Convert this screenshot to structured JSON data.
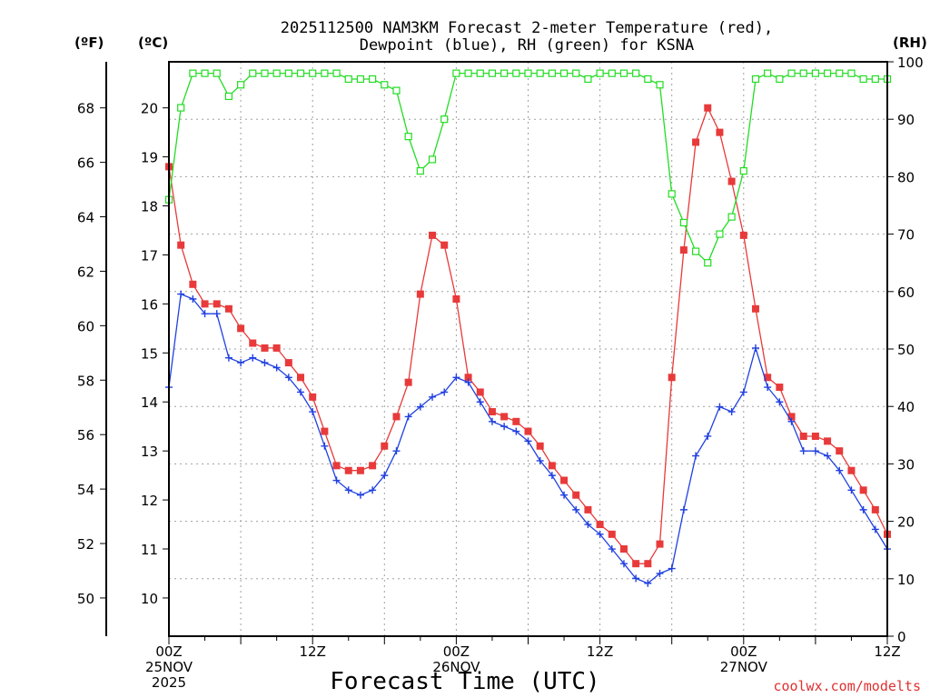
{
  "title_line1": "2025112500 NAM3KM Forecast 2-meter Temperature (red),",
  "title_line2": "Dewpoint (blue), RH (green) for KSNA",
  "units": {
    "f": "(ºF)",
    "c": "(ºC)",
    "rh": "(RH)"
  },
  "xlabel": "Forecast Time (UTC)",
  "credit": "coolwx.com/modelts",
  "colors": {
    "temp": "#e83a3a",
    "dew": "#2040e0",
    "rh": "#22dd22"
  },
  "chart_data": {
    "type": "line",
    "title": "2025112500 NAM3KM Forecast 2-meter Temperature (red), Dewpoint (blue), RH (green) for KSNA",
    "xlabel": "Forecast Time (UTC)",
    "xlim": [
      0,
      60
    ],
    "x_ticks": [
      {
        "hour": 0,
        "lines": [
          "00Z",
          "25NOV",
          "2025"
        ]
      },
      {
        "hour": 12,
        "lines": [
          "12Z"
        ]
      },
      {
        "hour": 24,
        "lines": [
          "00Z",
          "26NOV"
        ]
      },
      {
        "hour": 36,
        "lines": [
          "12Z"
        ]
      },
      {
        "hour": 48,
        "lines": [
          "00Z",
          "27NOV"
        ]
      },
      {
        "hour": 60,
        "lines": [
          "12Z"
        ]
      }
    ],
    "c_axis": {
      "label": "(ºC)",
      "range": [
        9.22,
        20.94
      ],
      "ticks": [
        10,
        11,
        12,
        13,
        14,
        15,
        16,
        17,
        18,
        19,
        20
      ]
    },
    "f_axis": {
      "label": "(ºF)",
      "ticks": [
        50,
        52,
        54,
        56,
        58,
        60,
        62,
        64,
        66,
        68
      ]
    },
    "rh_axis": {
      "label": "(RH)",
      "range": [
        0,
        100
      ],
      "ticks": [
        0,
        10,
        20,
        30,
        40,
        50,
        60,
        70,
        80,
        90,
        100
      ]
    },
    "x": [
      0,
      1,
      2,
      3,
      4,
      5,
      6,
      7,
      8,
      9,
      10,
      11,
      12,
      13,
      14,
      15,
      16,
      17,
      18,
      19,
      20,
      21,
      22,
      23,
      24,
      25,
      26,
      27,
      28,
      29,
      30,
      31,
      32,
      33,
      34,
      35,
      36,
      37,
      38,
      39,
      40,
      41,
      42,
      43,
      44,
      45,
      46,
      47,
      48,
      49,
      50,
      51,
      52,
      53,
      54,
      55,
      56,
      57,
      58,
      59,
      60
    ],
    "series": [
      {
        "name": "Temperature (ºC)",
        "color": "red",
        "marker": "filled-square",
        "values": [
          18.8,
          17.2,
          16.4,
          16.0,
          16.0,
          15.9,
          15.5,
          15.2,
          15.1,
          15.1,
          14.8,
          14.5,
          14.1,
          13.4,
          12.7,
          12.6,
          12.6,
          12.7,
          13.1,
          13.7,
          14.4,
          16.2,
          17.4,
          17.2,
          16.1,
          14.5,
          14.2,
          13.8,
          13.7,
          13.6,
          13.4,
          13.1,
          12.7,
          12.4,
          12.1,
          11.8,
          11.5,
          11.3,
          11.0,
          10.7,
          10.7,
          11.1,
          14.5,
          17.1,
          19.3,
          20.0,
          19.5,
          18.5,
          17.4,
          15.9,
          14.5,
          14.3,
          13.7,
          13.3,
          13.3,
          13.2,
          13.0,
          12.6,
          12.2,
          11.8,
          11.3
        ]
      },
      {
        "name": "Dewpoint (ºC)",
        "color": "blue",
        "marker": "plus",
        "values": [
          14.3,
          16.2,
          16.1,
          15.8,
          15.8,
          14.9,
          14.8,
          14.9,
          14.8,
          14.7,
          14.5,
          14.2,
          13.8,
          13.1,
          12.4,
          12.2,
          12.1,
          12.2,
          12.5,
          13.0,
          13.7,
          13.9,
          14.1,
          14.2,
          14.5,
          14.4,
          14.0,
          13.6,
          13.5,
          13.4,
          13.2,
          12.8,
          12.5,
          12.1,
          11.8,
          11.5,
          11.3,
          11.0,
          10.7,
          10.4,
          10.3,
          10.5,
          10.6,
          11.8,
          12.9,
          13.3,
          13.9,
          13.8,
          14.2,
          15.1,
          14.3,
          14.0,
          13.6,
          13.0,
          13.0,
          12.9,
          12.6,
          12.2,
          11.8,
          11.4,
          11.0
        ]
      },
      {
        "name": "RH (%)",
        "color": "green",
        "marker": "open-square",
        "values": [
          76,
          92,
          98,
          98,
          98,
          94,
          96,
          98,
          98,
          98,
          98,
          98,
          98,
          98,
          98,
          97,
          97,
          97,
          96,
          95,
          87,
          81,
          83,
          90,
          98,
          98,
          98,
          98,
          98,
          98,
          98,
          98,
          98,
          98,
          98,
          97,
          98,
          98,
          98,
          98,
          97,
          96,
          77,
          72,
          67,
          65,
          70,
          73,
          81,
          97,
          98,
          97,
          98,
          98,
          98,
          98,
          98,
          98,
          97,
          97,
          97
        ]
      }
    ]
  }
}
